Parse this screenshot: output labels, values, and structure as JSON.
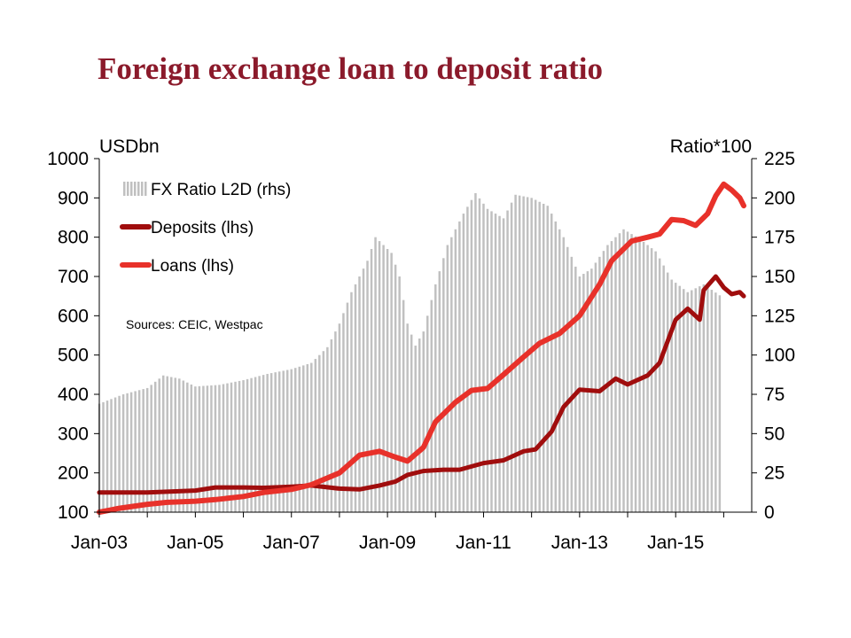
{
  "title": "Foreign exchange loan to deposit ratio",
  "chart_data": {
    "type": "line",
    "left_axis_label": "USDbn",
    "right_axis_label": "Ratio*100",
    "x_ticks": [
      "Jan-03",
      "Jan-05",
      "Jan-07",
      "Jan-09",
      "Jan-11",
      "Jan-13",
      "Jan-15"
    ],
    "x_range": [
      "2003-01",
      "2015-12"
    ],
    "ylim_left": [
      100,
      1000
    ],
    "y_ticks_left": [
      100,
      200,
      300,
      400,
      500,
      600,
      700,
      800,
      900,
      1000
    ],
    "ylim_right": [
      0,
      225
    ],
    "y_ticks_right": [
      0,
      25,
      50,
      75,
      100,
      125,
      150,
      175,
      200,
      225
    ],
    "note": "Sources: CEIC, Westpac",
    "legend_position": "top-left",
    "colors": {
      "ratio": "#c0c0c0",
      "deposits": "#a00d0d",
      "loans": "#e8312a",
      "title": "#8b1a2b"
    },
    "series": [
      {
        "name": "FX Ratio L2D (rhs)",
        "type": "bar",
        "axis": "right",
        "points": [
          [
            "2003-01",
            69
          ],
          [
            "2003-07",
            75
          ],
          [
            "2004-01",
            79
          ],
          [
            "2004-05",
            87
          ],
          [
            "2004-09",
            85
          ],
          [
            "2005-01",
            80
          ],
          [
            "2005-07",
            81
          ],
          [
            "2006-01",
            84
          ],
          [
            "2006-07",
            88
          ],
          [
            "2007-01",
            91
          ],
          [
            "2007-06",
            95
          ],
          [
            "2007-10",
            105
          ],
          [
            "2008-01",
            120
          ],
          [
            "2008-04",
            140
          ],
          [
            "2008-08",
            160
          ],
          [
            "2008-10",
            175
          ],
          [
            "2008-12",
            170
          ],
          [
            "2009-02",
            165
          ],
          [
            "2009-04",
            150
          ],
          [
            "2009-06",
            120
          ],
          [
            "2009-08",
            106
          ],
          [
            "2009-10",
            115
          ],
          [
            "2010-01",
            145
          ],
          [
            "2010-04",
            170
          ],
          [
            "2010-08",
            190
          ],
          [
            "2010-11",
            203
          ],
          [
            "2011-02",
            193
          ],
          [
            "2011-06",
            187
          ],
          [
            "2011-09",
            202
          ],
          [
            "2012-01",
            200
          ],
          [
            "2012-05",
            195
          ],
          [
            "2012-09",
            175
          ],
          [
            "2013-01",
            150
          ],
          [
            "2013-04",
            155
          ],
          [
            "2013-08",
            170
          ],
          [
            "2013-12",
            180
          ],
          [
            "2014-04",
            174
          ],
          [
            "2014-08",
            166
          ],
          [
            "2014-12",
            148
          ],
          [
            "2015-04",
            140
          ],
          [
            "2015-08",
            145
          ],
          [
            "2015-12",
            138
          ]
        ]
      },
      {
        "name": "Deposits (lhs)",
        "type": "line",
        "axis": "left",
        "points": [
          [
            "2003-01",
            150
          ],
          [
            "2004-01",
            150
          ],
          [
            "2004-06",
            152
          ],
          [
            "2005-01",
            155
          ],
          [
            "2005-06",
            163
          ],
          [
            "2006-01",
            163
          ],
          [
            "2006-06",
            162
          ],
          [
            "2007-01",
            165
          ],
          [
            "2007-06",
            168
          ],
          [
            "2008-01",
            160
          ],
          [
            "2008-06",
            158
          ],
          [
            "2008-11",
            168
          ],
          [
            "2009-03",
            178
          ],
          [
            "2009-06",
            195
          ],
          [
            "2009-10",
            205
          ],
          [
            "2010-03",
            208
          ],
          [
            "2010-07",
            208
          ],
          [
            "2011-01",
            225
          ],
          [
            "2011-06",
            232
          ],
          [
            "2011-11",
            255
          ],
          [
            "2012-02",
            260
          ],
          [
            "2012-06",
            305
          ],
          [
            "2012-09",
            368
          ],
          [
            "2013-01",
            412
          ],
          [
            "2013-06",
            408
          ],
          [
            "2013-10",
            440
          ],
          [
            "2014-01",
            425
          ],
          [
            "2014-06",
            448
          ],
          [
            "2014-09",
            480
          ],
          [
            "2015-01",
            590
          ],
          [
            "2015-04",
            618
          ],
          [
            "2015-07",
            590
          ],
          [
            "2015-08",
            665
          ],
          [
            "2015-11",
            700
          ],
          [
            "2016-01",
            672
          ],
          [
            "2016-03",
            655
          ],
          [
            "2016-05",
            660
          ],
          [
            "2016-06",
            650
          ]
        ]
      },
      {
        "name": "Loans (lhs)",
        "type": "line",
        "axis": "left",
        "points": [
          [
            "2003-01",
            100
          ],
          [
            "2003-06",
            110
          ],
          [
            "2004-01",
            120
          ],
          [
            "2004-06",
            125
          ],
          [
            "2005-01",
            128
          ],
          [
            "2005-06",
            132
          ],
          [
            "2006-01",
            140
          ],
          [
            "2006-06",
            150
          ],
          [
            "2007-01",
            158
          ],
          [
            "2007-06",
            170
          ],
          [
            "2008-01",
            200
          ],
          [
            "2008-06",
            245
          ],
          [
            "2008-11",
            255
          ],
          [
            "2009-03",
            240
          ],
          [
            "2009-06",
            230
          ],
          [
            "2009-10",
            265
          ],
          [
            "2010-01",
            330
          ],
          [
            "2010-06",
            380
          ],
          [
            "2010-10",
            410
          ],
          [
            "2011-02",
            415
          ],
          [
            "2011-06",
            450
          ],
          [
            "2011-11",
            495
          ],
          [
            "2012-03",
            530
          ],
          [
            "2012-08",
            555
          ],
          [
            "2013-01",
            600
          ],
          [
            "2013-06",
            680
          ],
          [
            "2013-09",
            740
          ],
          [
            "2014-02",
            790
          ],
          [
            "2014-06",
            800
          ],
          [
            "2014-09",
            808
          ],
          [
            "2014-12",
            845
          ],
          [
            "2015-03",
            842
          ],
          [
            "2015-06",
            830
          ],
          [
            "2015-09",
            860
          ],
          [
            "2015-11",
            905
          ],
          [
            "2016-01",
            935
          ],
          [
            "2016-03",
            920
          ],
          [
            "2016-05",
            900
          ],
          [
            "2016-06",
            880
          ]
        ]
      }
    ]
  }
}
